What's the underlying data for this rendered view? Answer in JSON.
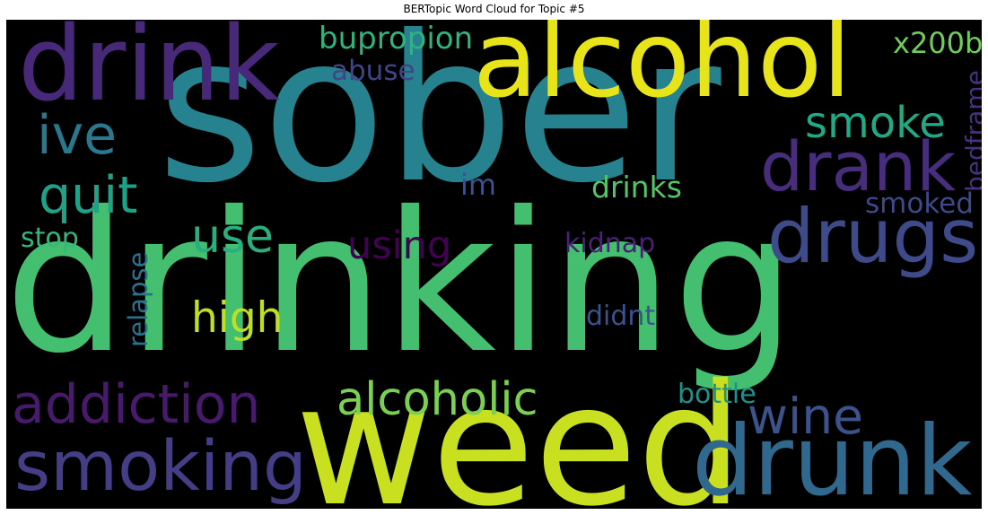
{
  "title": "BERTopic Word Cloud for Topic #5",
  "words": [
    {
      "text": "sober",
      "color": "#26828e"
    },
    {
      "text": "drinking",
      "color": "#44bf70"
    },
    {
      "text": "weed",
      "color": "#c8e020"
    },
    {
      "text": "drink",
      "color": "#482878"
    },
    {
      "text": "alcohol",
      "color": "#e7e419"
    },
    {
      "text": "drunk",
      "color": "#31688e"
    },
    {
      "text": "drugs",
      "color": "#3e4a89"
    },
    {
      "text": "drank",
      "color": "#472d7b"
    },
    {
      "text": "smoking",
      "color": "#433e85"
    },
    {
      "text": "addiction",
      "color": "#481a6c"
    },
    {
      "text": "alcoholic",
      "color": "#7ad151"
    },
    {
      "text": "wine",
      "color": "#3b528b"
    },
    {
      "text": "quit",
      "color": "#1fa187"
    },
    {
      "text": "ive",
      "color": "#2a788e"
    },
    {
      "text": "smoke",
      "color": "#22a884"
    },
    {
      "text": "use",
      "color": "#29af7f"
    },
    {
      "text": "high",
      "color": "#bddf26"
    },
    {
      "text": "using",
      "color": "#440154"
    },
    {
      "text": "bupropion",
      "color": "#2fb47c"
    },
    {
      "text": "x200b",
      "color": "#6ece58"
    },
    {
      "text": "abuse",
      "color": "#414487"
    },
    {
      "text": "bedframe",
      "color": "#46327e"
    },
    {
      "text": "drinks",
      "color": "#52c569"
    },
    {
      "text": "im",
      "color": "#3b528b"
    },
    {
      "text": "smoked",
      "color": "#3f4889"
    },
    {
      "text": "kidnap",
      "color": "#482173"
    },
    {
      "text": "stop",
      "color": "#35b779"
    },
    {
      "text": "relapse",
      "color": "#2c728e"
    },
    {
      "text": "didnt",
      "color": "#3b528b"
    },
    {
      "text": "bottle",
      "color": "#21918c"
    }
  ]
}
